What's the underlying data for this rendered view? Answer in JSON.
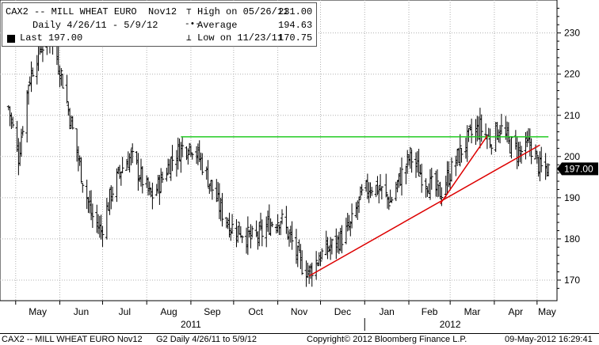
{
  "chart_data": {
    "type": "candlestick-bar",
    "title": "CAX2 -- MILL WHEAT EURO  Nov12",
    "subtitle": "Daily 4/26/11 - 5/9/12",
    "legend": {
      "high": {
        "label": "High on 05/26/11",
        "value": "231.00"
      },
      "average": {
        "label": "Average",
        "value": "194.63"
      },
      "low": {
        "label": "Low on 11/23/11",
        "value": "170.75"
      },
      "last": {
        "label": "Last",
        "value": "197.00"
      }
    },
    "y_ticks": [
      170,
      180,
      190,
      200,
      210,
      220,
      230
    ],
    "ylim": [
      165,
      238
    ],
    "x_months": [
      "May",
      "Jun",
      "Jul",
      "Aug",
      "Sep",
      "Oct",
      "Nov",
      "Dec",
      "Jan",
      "Feb",
      "Mar",
      "Apr",
      "May"
    ],
    "x_years": [
      "2011",
      "2012"
    ],
    "last_price_label": "197.00",
    "price_path": [
      {
        "date": "2011-04-26",
        "value": 212
      },
      {
        "date": "2011-05-03",
        "value": 200
      },
      {
        "date": "2011-05-10",
        "value": 218
      },
      {
        "date": "2011-05-17",
        "value": 226
      },
      {
        "date": "2011-05-26",
        "value": 229
      },
      {
        "date": "2011-06-02",
        "value": 220
      },
      {
        "date": "2011-06-09",
        "value": 208
      },
      {
        "date": "2011-06-16",
        "value": 196
      },
      {
        "date": "2011-06-23",
        "value": 186
      },
      {
        "date": "2011-06-30",
        "value": 182
      },
      {
        "date": "2011-07-07",
        "value": 191
      },
      {
        "date": "2011-07-14",
        "value": 197
      },
      {
        "date": "2011-07-21",
        "value": 200
      },
      {
        "date": "2011-07-28",
        "value": 195
      },
      {
        "date": "2011-08-04",
        "value": 190
      },
      {
        "date": "2011-08-11",
        "value": 194
      },
      {
        "date": "2011-08-18",
        "value": 199
      },
      {
        "date": "2011-08-25",
        "value": 202
      },
      {
        "date": "2011-09-01",
        "value": 203
      },
      {
        "date": "2011-09-08",
        "value": 199
      },
      {
        "date": "2011-09-15",
        "value": 193
      },
      {
        "date": "2011-09-22",
        "value": 187
      },
      {
        "date": "2011-09-29",
        "value": 183
      },
      {
        "date": "2011-10-06",
        "value": 182
      },
      {
        "date": "2011-10-13",
        "value": 180
      },
      {
        "date": "2011-10-20",
        "value": 181
      },
      {
        "date": "2011-10-27",
        "value": 184
      },
      {
        "date": "2011-11-03",
        "value": 185
      },
      {
        "date": "2011-11-10",
        "value": 180
      },
      {
        "date": "2011-11-17",
        "value": 174
      },
      {
        "date": "2011-11-23",
        "value": 172
      },
      {
        "date": "2011-12-01",
        "value": 176
      },
      {
        "date": "2011-12-08",
        "value": 178
      },
      {
        "date": "2011-12-15",
        "value": 180
      },
      {
        "date": "2011-12-22",
        "value": 183
      },
      {
        "date": "2011-12-29",
        "value": 190
      },
      {
        "date": "2012-01-05",
        "value": 193
      },
      {
        "date": "2012-01-12",
        "value": 192
      },
      {
        "date": "2012-01-19",
        "value": 189
      },
      {
        "date": "2012-01-26",
        "value": 195
      },
      {
        "date": "2012-02-02",
        "value": 200
      },
      {
        "date": "2012-02-09",
        "value": 196
      },
      {
        "date": "2012-02-16",
        "value": 193
      },
      {
        "date": "2012-02-23",
        "value": 191
      },
      {
        "date": "2012-03-01",
        "value": 196
      },
      {
        "date": "2012-03-08",
        "value": 201
      },
      {
        "date": "2012-03-15",
        "value": 205
      },
      {
        "date": "2012-03-22",
        "value": 207
      },
      {
        "date": "2012-03-29",
        "value": 204
      },
      {
        "date": "2012-04-05",
        "value": 207
      },
      {
        "date": "2012-04-12",
        "value": 203
      },
      {
        "date": "2012-04-19",
        "value": 201
      },
      {
        "date": "2012-04-26",
        "value": 203
      },
      {
        "date": "2012-05-03",
        "value": 197
      },
      {
        "date": "2012-05-09",
        "value": 197
      }
    ],
    "resistance_line": {
      "from": {
        "date": "2011-08-25",
        "value": 204.8
      },
      "to": {
        "date": "2012-05-09",
        "value": 204.8
      },
      "color": "#22cc22"
    },
    "trend_lines": [
      {
        "from": {
          "date": "2011-11-23",
          "value": 171
        },
        "to": {
          "date": "2012-05-03",
          "value": 202.8
        },
        "color": "#dd0000"
      },
      {
        "from": {
          "date": "2012-02-23",
          "value": 188.5
        },
        "to": {
          "date": "2012-03-27",
          "value": 205
        },
        "color": "#dd0000"
      }
    ],
    "colors": {
      "bars": "#000000",
      "axis": "#000000",
      "grid": "#b0b0b0",
      "last_box": "#000000"
    },
    "grid": true
  },
  "footer": {
    "left": "CAX2 -- MILL WHEAT EURO  Nov12",
    "mid1": "G2  Daily  4/26/11 to 5/9/12",
    "copyright": "Copyright© 2012 Bloomberg Finance L.P.",
    "timestamp": "09-May-2012 16:29:41"
  }
}
